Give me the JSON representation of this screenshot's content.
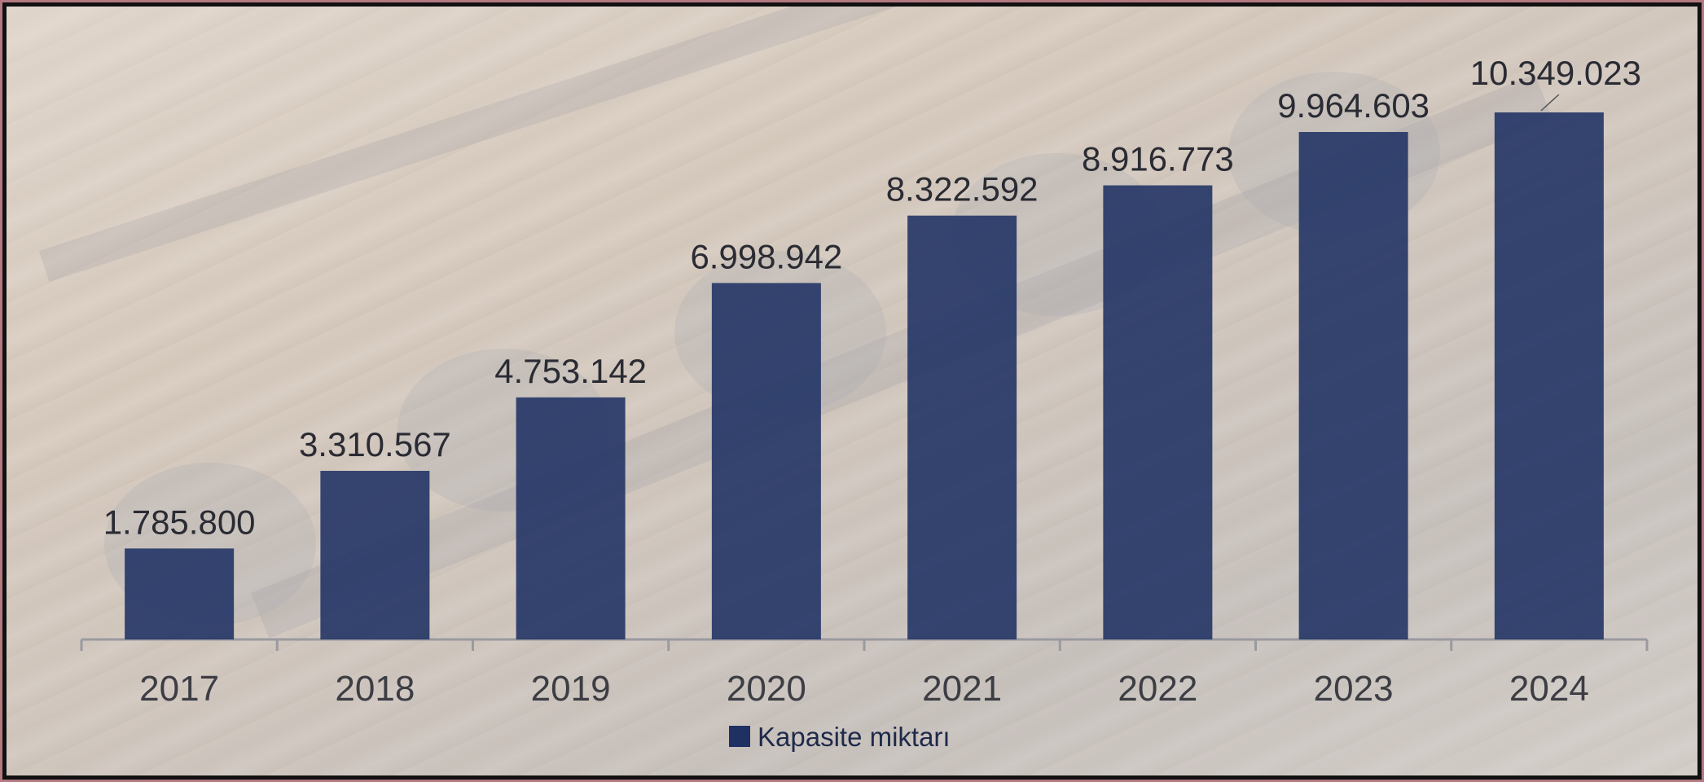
{
  "chart_data": {
    "type": "bar",
    "title": "",
    "xlabel": "",
    "ylabel": "",
    "categories": [
      "2017",
      "2018",
      "2019",
      "2020",
      "2021",
      "2022",
      "2023",
      "2024"
    ],
    "series": [
      {
        "name": "Kapasite miktarı",
        "values": [
          1785800,
          3310567,
          4753142,
          6998942,
          8322592,
          8916773,
          9964603,
          10349023
        ],
        "data_labels": [
          "1.785.800",
          "3.310.567",
          "4.753.142",
          "6.998.942",
          "8.322.592",
          "8.916.773",
          "9.964.603",
          "10.349.023"
        ],
        "color": "#1f3163"
      }
    ],
    "ylim": [
      0,
      10349023
    ],
    "grid": false,
    "legend_position": "bottom"
  },
  "legend": {
    "label": "Kapasite miktarı"
  }
}
